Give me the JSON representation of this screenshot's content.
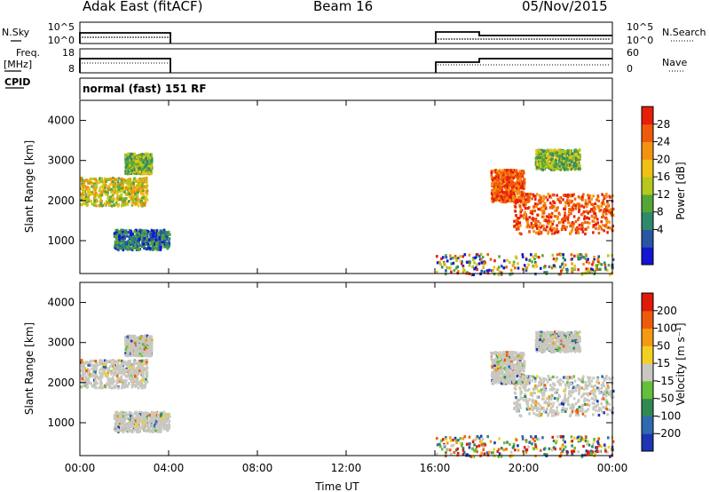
{
  "header": {
    "title": "Adak East (fitACF)",
    "beam": "Beam 16",
    "date": "05/Nov/2015"
  },
  "side_labels": {
    "nsky": "N.Sky",
    "nsearch": "N.Search",
    "freq": "Freq.",
    "freq_unit": "[MHz]",
    "nave": "Nave",
    "cpid": "CPID"
  },
  "ticks": {
    "nsky_top": "10^5",
    "nsky_bottom": "10^0",
    "nsearch_top": "10^5",
    "nsearch_bottom": "10^0",
    "freq_top": "18",
    "freq_bottom": "8",
    "nave_top": "60",
    "nave_bottom": "0",
    "range": [
      "4000",
      "3000",
      "2000",
      "1000"
    ],
    "time": [
      "00:00",
      "04:00",
      "08:00",
      "12:00",
      "16:00",
      "20:00",
      "00:00"
    ]
  },
  "cpid_text": "normal (fast) 151 RF",
  "axes": {
    "range_label": "Slant Range [km]",
    "time_label": "Time UT"
  },
  "power_colorbar": {
    "label": "Power [dB]",
    "ticks": [
      "28",
      "24",
      "20",
      "16",
      "12",
      "8",
      "4"
    ],
    "colors": [
      "#1414d2",
      "#2a55a5",
      "#2e8a6b",
      "#55a637",
      "#b4c81e",
      "#f0c014",
      "#f39210",
      "#ef5a0a",
      "#e81e0a"
    ]
  },
  "velocity_colorbar": {
    "label": "Velocity [m s⁻¹]",
    "ticks": [
      "200",
      "100",
      "50",
      "15",
      "-15",
      "-50",
      "-100",
      "-200"
    ],
    "colors": [
      "#1d35b5",
      "#2e6ab0",
      "#2e8a52",
      "#62c03a",
      "#c8c8c0",
      "#f2d020",
      "#f39a12",
      "#ef5a0a",
      "#e11a0a"
    ]
  },
  "chart_data": {
    "type": "heatmap",
    "x_range_hours": [
      0,
      24
    ],
    "y_range_km": [
      180,
      4500
    ],
    "operation_intervals_ut": [
      [
        "00:00",
        "04:00"
      ],
      [
        "16:00",
        "24:00"
      ]
    ],
    "power_clusters": [
      {
        "t": [
          0.0,
          3.0
        ],
        "km": [
          1900,
          2600
        ],
        "level": "medium-strong"
      },
      {
        "t": [
          2.0,
          3.2
        ],
        "km": [
          2700,
          3200
        ],
        "level": "medium"
      },
      {
        "t": [
          1.5,
          4.0
        ],
        "km": [
          800,
          1300
        ],
        "level": "weak"
      },
      {
        "t": [
          18.5,
          20.0
        ],
        "km": [
          2000,
          2800
        ],
        "level": "strong"
      },
      {
        "t": [
          19.5,
          24.0
        ],
        "km": [
          1200,
          2200
        ],
        "level": "strong"
      },
      {
        "t": [
          20.5,
          22.5
        ],
        "km": [
          2800,
          3300
        ],
        "level": "medium"
      },
      {
        "t": [
          16.0,
          24.0
        ],
        "km": [
          180,
          700
        ],
        "level": "weak-noise"
      }
    ],
    "velocity_summary": "mostly -15 to 15 m/s (gray) with scattered positive and negative values",
    "power_scale_db": [
      0,
      30
    ],
    "velocity_scale_ms": [
      -250,
      250
    ]
  }
}
